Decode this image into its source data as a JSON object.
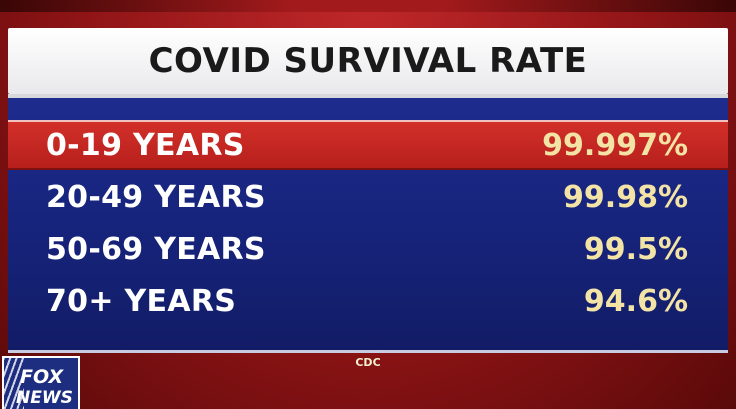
{
  "title": "COVID SURVIVAL RATE",
  "rows": [
    {
      "label": "0-19 YEARS",
      "value": "99.997%"
    },
    {
      "label": "20-49 YEARS",
      "value": "99.98%"
    },
    {
      "label": "50-69 YEARS",
      "value": "99.5%"
    },
    {
      "label": "70+ YEARS",
      "value": "94.6%"
    }
  ],
  "source": "CDC",
  "logo": {
    "line1": "FOX",
    "line2": "NEWS"
  },
  "colors": {
    "highlight_row": "#c42620",
    "panel_blue": "#1a2784",
    "value_text": "#f3e4a6",
    "label_text": "#ffffff"
  }
}
